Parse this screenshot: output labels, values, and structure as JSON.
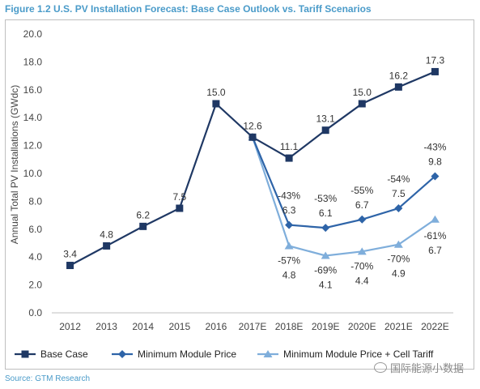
{
  "figure_title": "Figure 1.2  U.S. PV Installation Forecast: Base Case Outlook vs. Tariff Scenarios",
  "source_text": "Source:  GTM Research",
  "watermark_text": "国际能源小数据",
  "colors": {
    "title": "#4a9bc9",
    "base_case": "#1f3864",
    "min_module": "#2e64a8",
    "min_module_cell": "#7faedb"
  },
  "chart_data": {
    "type": "line",
    "title": "",
    "xlabel": "",
    "ylabel": "Annual Total PV Installations (GWdc)",
    "ylim": [
      0,
      20
    ],
    "yticks": [
      "0.0",
      "2.0",
      "4.0",
      "6.0",
      "8.0",
      "10.0",
      "12.0",
      "14.0",
      "16.0",
      "18.0",
      "20.0"
    ],
    "categories": [
      "2012",
      "2013",
      "2014",
      "2015",
      "2016",
      "2017E",
      "2018E",
      "2019E",
      "2020E",
      "2021E",
      "2022E"
    ],
    "grid": false,
    "legend": "bottom",
    "series": [
      {
        "name": "Base Case",
        "color": "#1f3864",
        "marker": "square",
        "values": [
          3.4,
          4.8,
          6.2,
          7.5,
          15.0,
          12.6,
          11.1,
          13.1,
          15.0,
          16.2,
          17.3
        ],
        "labels": [
          "3.4",
          "4.8",
          "6.2",
          "7.5",
          "15.0",
          "12.6",
          "11.1",
          "13.1",
          "15.0",
          "16.2",
          "17.3"
        ]
      },
      {
        "name": "Minimum Module Price",
        "color": "#2e64a8",
        "marker": "diamond",
        "values": [
          null,
          null,
          null,
          null,
          null,
          12.6,
          6.3,
          6.1,
          6.7,
          7.5,
          9.8
        ],
        "labels": [
          null,
          null,
          null,
          null,
          null,
          null,
          "-43%\n6.3",
          "-53%\n6.1",
          "-55%\n6.7",
          "-54%\n7.5",
          "-43%\n9.8"
        ]
      },
      {
        "name": "Minimum Module Price + Cell Tariff",
        "color": "#7faedb",
        "marker": "triangle",
        "values": [
          null,
          null,
          null,
          null,
          null,
          12.6,
          4.8,
          4.1,
          4.4,
          4.9,
          6.7
        ],
        "labels": [
          null,
          null,
          null,
          null,
          null,
          null,
          "-57%\n4.8",
          "-69%\n4.1",
          "-70%\n4.4",
          "-70%\n4.9",
          "-61%\n6.7"
        ]
      }
    ]
  }
}
